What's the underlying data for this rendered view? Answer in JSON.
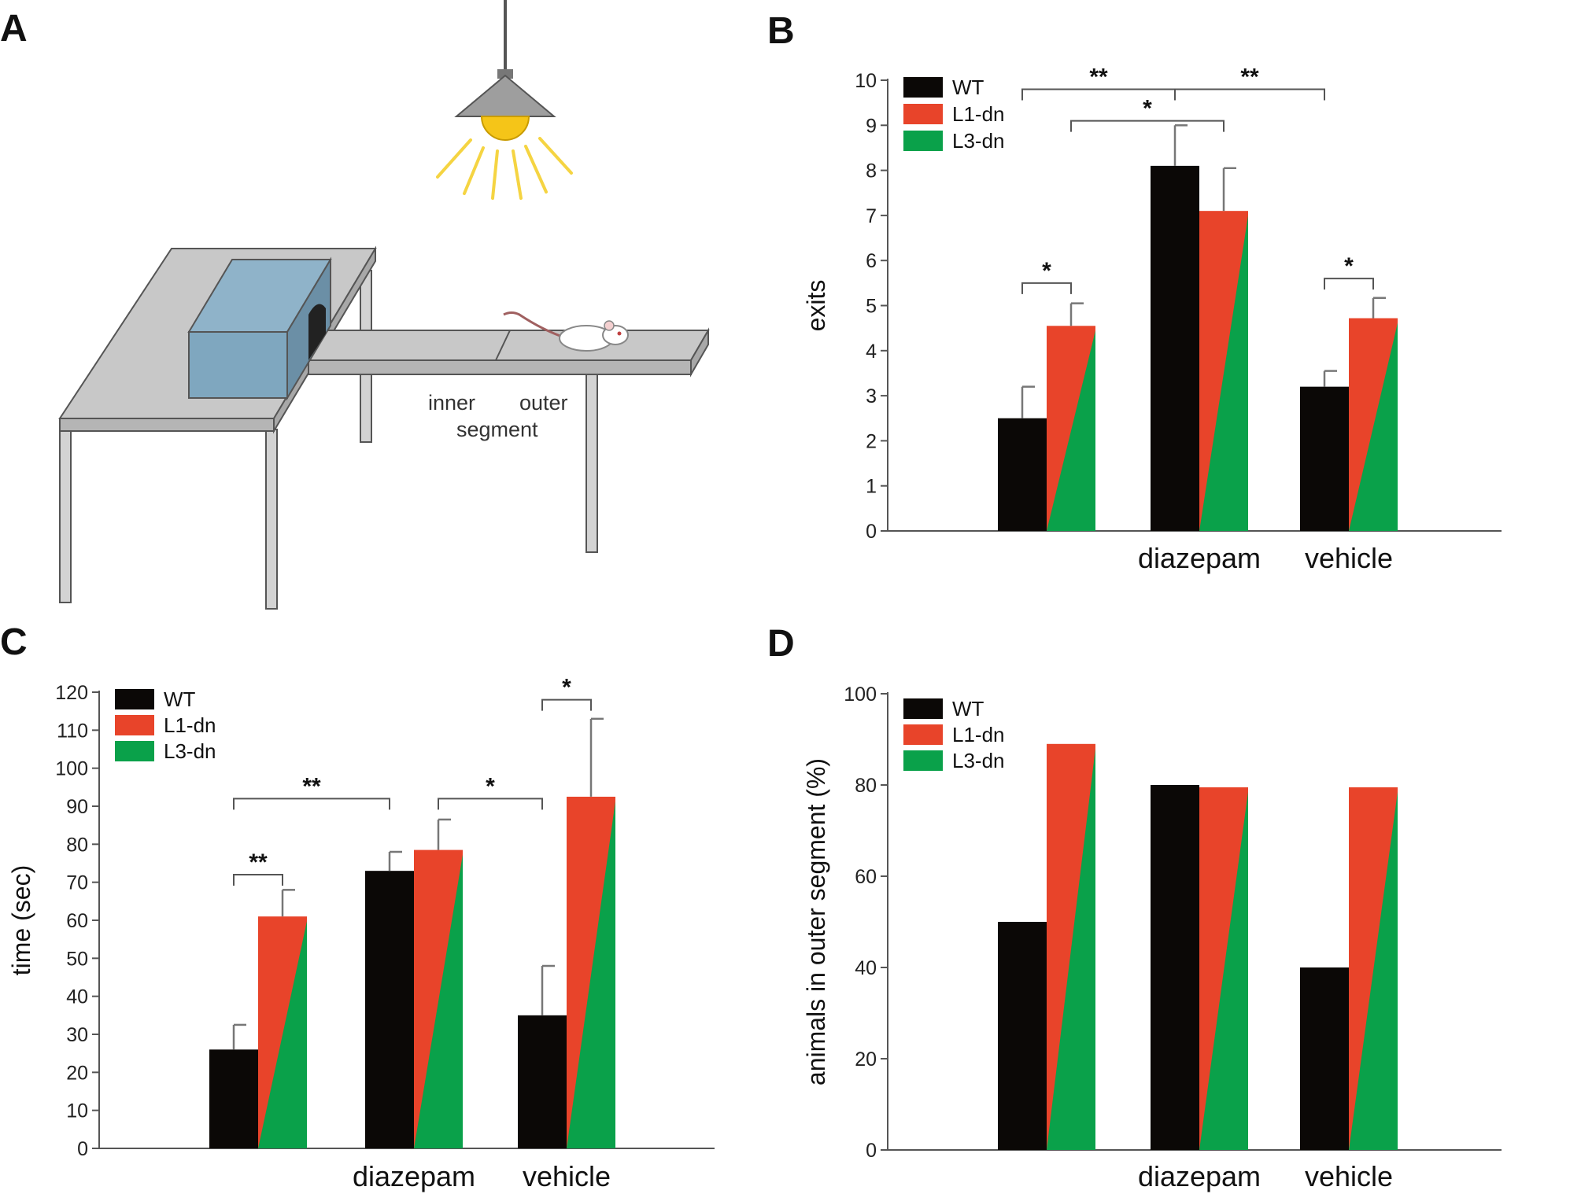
{
  "panels": {
    "a": {
      "letter": "A"
    },
    "b": {
      "letter": "B"
    },
    "c": {
      "letter": "C"
    },
    "d": {
      "letter": "D"
    }
  },
  "diagram": {
    "label_inner": "inner",
    "label_outer": "outer",
    "label_segment": "segment",
    "colors": {
      "lamp_shade": "#9e9e9e",
      "bulb": "#f5c518",
      "rays": "#f5d442",
      "table": "#c8c8c8",
      "box": "#7fa7bf"
    }
  },
  "colors": {
    "wt": "#0b0806",
    "l1": "#e8442a",
    "l3": "#0aa14a",
    "axis": "#555555"
  },
  "chart_data": [
    {
      "id": "b",
      "type": "bar",
      "ylabel": "exits",
      "ylim": [
        0,
        10
      ],
      "yticks": [
        0,
        1,
        2,
        3,
        4,
        5,
        6,
        7,
        8,
        9,
        10
      ],
      "categories": [
        "",
        "diazepam",
        "vehicle"
      ],
      "legend": [
        "WT",
        "L1-dn",
        "L3-dn"
      ],
      "legend_position": "top-left",
      "series": [
        {
          "name": "WT",
          "values": [
            2.5,
            8.1,
            3.2
          ],
          "errors": [
            0.7,
            0.9,
            0.35
          ]
        },
        {
          "name": "L1-dn / L3-dn",
          "values": [
            4.55,
            7.1,
            4.72
          ],
          "errors": [
            0.5,
            0.95,
            0.45
          ]
        }
      ],
      "significance": [
        {
          "label": "*",
          "from": [
            0,
            0
          ],
          "to": [
            0,
            1
          ],
          "y": 5.5
        },
        {
          "label": "*",
          "from": [
            2,
            0
          ],
          "to": [
            2,
            1
          ],
          "y": 5.6
        },
        {
          "label": "**",
          "from": [
            0,
            0
          ],
          "to": [
            1,
            0
          ],
          "y": 9.8
        },
        {
          "label": "**",
          "from": [
            1,
            0
          ],
          "to": [
            2,
            0
          ],
          "y": 9.8
        },
        {
          "label": "*",
          "from": [
            0,
            1
          ],
          "to": [
            1,
            1
          ],
          "y": 9.1
        }
      ]
    },
    {
      "id": "c",
      "type": "bar",
      "ylabel": "time (sec)",
      "ylim": [
        0,
        120
      ],
      "yticks": [
        0,
        10,
        20,
        30,
        40,
        50,
        60,
        70,
        80,
        90,
        100,
        110,
        120
      ],
      "categories": [
        "",
        "diazepam",
        "vehicle"
      ],
      "legend": [
        "WT",
        "L1-dn",
        "L3-dn"
      ],
      "legend_position": "top-left",
      "series": [
        {
          "name": "WT",
          "values": [
            26,
            73,
            35
          ],
          "errors": [
            6.5,
            5,
            13
          ]
        },
        {
          "name": "L1-dn / L3-dn",
          "values": [
            61,
            78.5,
            92.5
          ],
          "errors": [
            7,
            8,
            20.5
          ]
        }
      ],
      "significance": [
        {
          "label": "**",
          "from": [
            0,
            0
          ],
          "to": [
            0,
            1
          ],
          "y": 72
        },
        {
          "label": "*",
          "from": [
            2,
            0
          ],
          "to": [
            2,
            1
          ],
          "y": 118
        },
        {
          "label": "**",
          "from": [
            0,
            0
          ],
          "to": [
            1,
            0
          ],
          "y": 92
        },
        {
          "label": "*",
          "from": [
            1,
            1
          ],
          "to": [
            2,
            0
          ],
          "y": 92
        }
      ]
    },
    {
      "id": "d",
      "type": "bar",
      "ylabel": "animals in outer segment (%)",
      "ylim": [
        0,
        100
      ],
      "yticks": [
        0,
        20,
        40,
        60,
        80,
        100
      ],
      "categories": [
        "",
        "diazepam",
        "vehicle"
      ],
      "legend": [
        "WT",
        "L1-dn",
        "L3-dn"
      ],
      "legend_position": "top-left",
      "series": [
        {
          "name": "WT",
          "values": [
            50,
            80,
            40
          ]
        },
        {
          "name": "L1-dn / L3-dn",
          "values": [
            89,
            79.5,
            79.5
          ]
        }
      ],
      "significance": []
    }
  ]
}
